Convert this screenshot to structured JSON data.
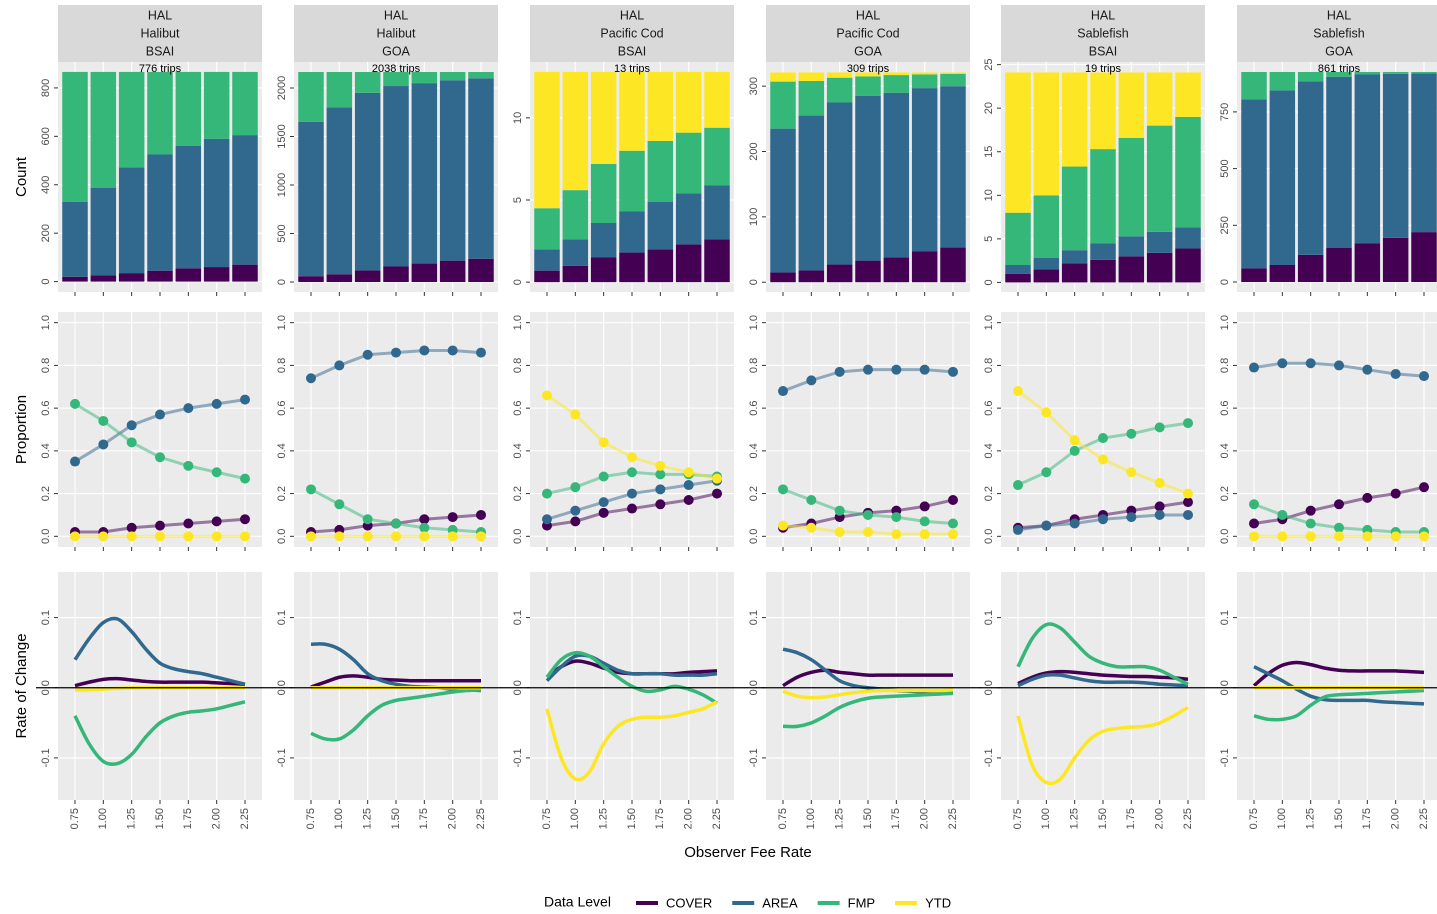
{
  "chart_data": {
    "type": "facet",
    "xlabel": "Observer Fee Rate",
    "legend_title": "Data Level",
    "levels": [
      {
        "name": "COVER",
        "color": "#440154"
      },
      {
        "name": "AREA",
        "color": "#31688e"
      },
      {
        "name": "FMP",
        "color": "#35b779"
      },
      {
        "name": "YTD",
        "color": "#fde725"
      }
    ],
    "xlim": [
      0.6,
      2.4
    ],
    "xticks": [
      0.75,
      {
        "value": 1,
        "label": "1.00"
      },
      1.25,
      {
        "value": 1.5,
        "label": "1.50"
      },
      1.75,
      {
        "value": 2,
        "label": "2.00"
      },
      2.25
    ],
    "x": [
      0.75,
      1,
      1.25,
      1.5,
      1.75,
      2,
      2.25
    ],
    "rate_x": [
      0.75,
      0.875,
      1,
      1.125,
      1.25,
      1.375,
      1.5,
      1.625,
      1.75,
      1.875,
      2,
      2.125,
      2.25
    ],
    "rows": [
      {
        "type": "bar",
        "ylabel": "Count"
      },
      {
        "type": "line",
        "ylabel": "Proportion",
        "ylim": [
          -0.05,
          1.05
        ],
        "yticks": [
          {
            "value": 0,
            "label": "0.0"
          },
          0.2,
          0.4,
          0.6,
          0.8,
          {
            "value": 1,
            "label": "1.0"
          }
        ]
      },
      {
        "type": "smooth",
        "ylabel": "Rate of Change",
        "ylim": [
          -0.16,
          0.165
        ],
        "yticks": [
          -0.1,
          {
            "value": 0,
            "label": "0.0"
          },
          0.1
        ]
      }
    ],
    "panels": [
      {
        "strip": [
          "HAL",
          "Halibut",
          "BSAI"
        ],
        "trips": "776 trips",
        "count": {
          "ylim": [
            -43,
            907
          ],
          "yticks": [
            0,
            200,
            400,
            600,
            800
          ],
          "series": [
            [
              20,
              25,
              35,
              45,
              55,
              60,
              70
            ],
            [
              310,
              363,
              437,
              480,
              505,
              530,
              535
            ],
            [
              536,
              478,
              394,
              341,
              306,
              276,
              261
            ],
            [
              0,
              0,
              0,
              0,
              0,
              0,
              0
            ]
          ]
        },
        "proportion": [
          [
            0.02,
            0.02,
            0.04,
            0.05,
            0.06,
            0.07,
            0.08
          ],
          [
            0.35,
            0.43,
            0.52,
            0.57,
            0.6,
            0.62,
            0.64
          ],
          [
            0.62,
            0.54,
            0.44,
            0.37,
            0.33,
            0.3,
            0.27
          ],
          [
            0,
            0,
            0,
            0,
            0,
            0,
            0
          ]
        ],
        "rate": [
          [
            0.003,
            0.008,
            0.012,
            0.013,
            0.011,
            0.009,
            0.008,
            0.008,
            0.008,
            0.008,
            0.007,
            0.006,
            0.005
          ],
          [
            0.04,
            0.07,
            0.093,
            0.098,
            0.08,
            0.055,
            0.035,
            0.027,
            0.023,
            0.02,
            0.015,
            0.01,
            0.005
          ],
          [
            -0.04,
            -0.08,
            -0.105,
            -0.108,
            -0.095,
            -0.07,
            -0.05,
            -0.04,
            -0.035,
            -0.033,
            -0.03,
            -0.025,
            -0.02
          ],
          [
            -0.003,
            -0.003,
            -0.002,
            -0.001,
            0,
            0,
            0,
            0,
            0,
            0,
            0,
            0,
            0
          ]
        ]
      },
      {
        "strip": [
          "HAL",
          "Halibut",
          "GOA"
        ],
        "trips": "2038 trips",
        "count": {
          "ylim": [
            -103,
            2268
          ],
          "yticks": [
            0,
            500,
            1000,
            1500,
            2000
          ],
          "series": [
            [
              60,
              80,
              120,
              160,
              190,
              220,
              240
            ],
            [
              1590,
              1720,
              1830,
              1860,
              1860,
              1860,
              1860
            ],
            [
              515,
              365,
              215,
              145,
              115,
              85,
              65
            ],
            [
              0,
              0,
              0,
              0,
              0,
              0,
              0
            ]
          ]
        },
        "proportion": [
          [
            0.02,
            0.03,
            0.05,
            0.06,
            0.08,
            0.09,
            0.1
          ],
          [
            0.74,
            0.8,
            0.85,
            0.86,
            0.87,
            0.87,
            0.86
          ],
          [
            0.22,
            0.15,
            0.08,
            0.06,
            0.04,
            0.03,
            0.02
          ],
          [
            0,
            0,
            0,
            0,
            0,
            0,
            0
          ]
        ],
        "rate": [
          [
            0.001,
            0.008,
            0.015,
            0.017,
            0.015,
            0.012,
            0.011,
            0.01,
            0.01,
            0.01,
            0.01,
            0.01,
            0.01
          ],
          [
            0.062,
            0.062,
            0.055,
            0.04,
            0.02,
            0.01,
            0.005,
            0.002,
            0.001,
            0,
            -0.002,
            -0.003,
            -0.004
          ],
          [
            -0.065,
            -0.073,
            -0.073,
            -0.06,
            -0.04,
            -0.025,
            -0.018,
            -0.015,
            -0.012,
            -0.009,
            -0.006,
            -0.004,
            -0.003
          ],
          [
            0,
            0,
            0,
            0,
            0,
            0,
            0,
            0,
            0,
            0,
            0,
            0,
            0
          ]
        ]
      },
      {
        "strip": [
          "HAL",
          "Pacific Cod",
          "BSAI"
        ],
        "trips": "13 trips",
        "count": {
          "ylim": [
            -0.6,
            13.4
          ],
          "yticks": [
            0,
            5,
            10
          ],
          "series": [
            [
              0.7,
              1,
              1.5,
              1.8,
              2,
              2.3,
              2.6
            ],
            [
              1.3,
              1.6,
              2.1,
              2.5,
              2.9,
              3.1,
              3.3
            ],
            [
              2.5,
              3,
              3.6,
              3.7,
              3.7,
              3.7,
              3.5
            ],
            [
              8.3,
              7.2,
              5.6,
              4.8,
              4.2,
              3.7,
              3.4
            ]
          ]
        },
        "proportion": [
          [
            0.05,
            0.07,
            0.11,
            0.13,
            0.15,
            0.17,
            0.2
          ],
          [
            0.08,
            0.12,
            0.16,
            0.2,
            0.22,
            0.24,
            0.26
          ],
          [
            0.2,
            0.23,
            0.28,
            0.3,
            0.29,
            0.29,
            0.28
          ],
          [
            0.66,
            0.57,
            0.44,
            0.37,
            0.33,
            0.3,
            0.27
          ]
        ],
        "rate": [
          [
            0.015,
            0.03,
            0.038,
            0.035,
            0.028,
            0.022,
            0.02,
            0.02,
            0.02,
            0.02,
            0.022,
            0.023,
            0.024
          ],
          [
            0.01,
            0.03,
            0.045,
            0.045,
            0.035,
            0.025,
            0.02,
            0.02,
            0.02,
            0.018,
            0.018,
            0.018,
            0.02
          ],
          [
            0.015,
            0.04,
            0.05,
            0.045,
            0.03,
            0.015,
            0.002,
            -0.005,
            -0.003,
            0.002,
            -0.002,
            -0.01,
            -0.022
          ],
          [
            -0.03,
            -0.1,
            -0.13,
            -0.12,
            -0.08,
            -0.055,
            -0.045,
            -0.042,
            -0.042,
            -0.04,
            -0.035,
            -0.03,
            -0.02
          ]
        ]
      },
      {
        "strip": [
          "HAL",
          "Pacific Cod",
          "GOA"
        ],
        "trips": "309 trips",
        "count": {
          "ylim": [
            -15,
            337
          ],
          "yticks": [
            0,
            100,
            200,
            300
          ],
          "series": [
            [
              15,
              18,
              27,
              33,
              38,
              47,
              53
            ],
            [
              220,
              237,
              248,
              252,
              252,
              250,
              247
            ],
            [
              72,
              53,
              38,
              30,
              27,
              21,
              19
            ],
            [
              14,
              13,
              8,
              6,
              4,
              3,
              2
            ]
          ]
        },
        "proportion": [
          [
            0.04,
            0.06,
            0.09,
            0.11,
            0.12,
            0.14,
            0.17
          ],
          [
            0.68,
            0.73,
            0.77,
            0.78,
            0.78,
            0.78,
            0.77
          ],
          [
            0.22,
            0.17,
            0.12,
            0.1,
            0.09,
            0.07,
            0.06
          ],
          [
            0.05,
            0.04,
            0.02,
            0.02,
            0.01,
            0.01,
            0.01
          ]
        ],
        "rate": [
          [
            0.003,
            0.015,
            0.022,
            0.025,
            0.022,
            0.02,
            0.018,
            0.018,
            0.018,
            0.018,
            0.018,
            0.018,
            0.018
          ],
          [
            0.055,
            0.05,
            0.04,
            0.025,
            0.01,
            0.003,
            0,
            -0.002,
            -0.004,
            -0.005,
            -0.006,
            -0.007,
            -0.007
          ],
          [
            -0.055,
            -0.055,
            -0.05,
            -0.04,
            -0.028,
            -0.02,
            -0.015,
            -0.013,
            -0.012,
            -0.011,
            -0.01,
            -0.009,
            -0.008
          ],
          [
            -0.005,
            -0.012,
            -0.014,
            -0.013,
            -0.01,
            -0.007,
            -0.005,
            -0.004,
            -0.004,
            -0.004,
            -0.004,
            -0.004,
            -0.003
          ]
        ]
      },
      {
        "strip": [
          "HAL",
          "Sablefish",
          "BSAI"
        ],
        "trips": "19 trips",
        "count": {
          "ylim": [
            -1.1,
            25.3
          ],
          "yticks": [
            0,
            5,
            10,
            15,
            20,
            25
          ],
          "series": [
            [
              1,
              1.5,
              2.2,
              2.6,
              3,
              3.4,
              3.9
            ],
            [
              1,
              1.3,
              1.5,
              1.9,
              2.3,
              2.4,
              2.4
            ],
            [
              6,
              7.2,
              9.6,
              10.8,
              11.3,
              12.2,
              12.7
            ],
            [
              16.1,
              14.1,
              10.8,
              8.8,
              7.5,
              6.1,
              5.1
            ]
          ]
        },
        "proportion": [
          [
            0.04,
            0.05,
            0.08,
            0.1,
            0.12,
            0.14,
            0.16
          ],
          [
            0.03,
            0.05,
            0.06,
            0.08,
            0.09,
            0.1,
            0.1
          ],
          [
            0.24,
            0.3,
            0.4,
            0.46,
            0.48,
            0.51,
            0.53
          ],
          [
            0.68,
            0.58,
            0.45,
            0.36,
            0.3,
            0.25,
            0.2
          ]
        ],
        "rate": [
          [
            0.006,
            0.015,
            0.021,
            0.023,
            0.022,
            0.02,
            0.018,
            0.017,
            0.016,
            0.016,
            0.015,
            0.014,
            0.012
          ],
          [
            0.003,
            0.012,
            0.018,
            0.018,
            0.014,
            0.01,
            0.008,
            0.008,
            0.008,
            0.007,
            0.005,
            0.004,
            0.003
          ],
          [
            0.03,
            0.07,
            0.09,
            0.085,
            0.065,
            0.045,
            0.035,
            0.03,
            0.03,
            0.03,
            0.025,
            0.015,
            0.005
          ],
          [
            -0.04,
            -0.11,
            -0.135,
            -0.13,
            -0.1,
            -0.075,
            -0.062,
            -0.058,
            -0.056,
            -0.055,
            -0.05,
            -0.04,
            -0.028
          ]
        ]
      },
      {
        "strip": [
          "HAL",
          "Sablefish",
          "GOA"
        ],
        "trips": "861 trips",
        "count": {
          "ylim": [
            -44,
            970
          ],
          "yticks": [
            0,
            250,
            500,
            750
          ],
          "series": [
            [
              60,
              75,
              120,
              150,
              170,
              195,
              220
            ],
            [
              745,
              770,
              765,
              755,
              745,
              723,
              700
            ],
            [
              121,
              81,
              41,
              21,
              11,
              8,
              6
            ],
            [
              0,
              0,
              0,
              0,
              0,
              0,
              0
            ]
          ]
        },
        "proportion": [
          [
            0.06,
            0.08,
            0.12,
            0.15,
            0.18,
            0.2,
            0.23
          ],
          [
            0.79,
            0.81,
            0.81,
            0.8,
            0.78,
            0.76,
            0.75
          ],
          [
            0.15,
            0.1,
            0.06,
            0.04,
            0.03,
            0.02,
            0.02
          ],
          [
            0,
            0,
            0,
            0,
            0,
            0,
            0
          ]
        ],
        "rate": [
          [
            0.003,
            0.02,
            0.032,
            0.036,
            0.033,
            0.028,
            0.025,
            0.024,
            0.024,
            0.024,
            0.024,
            0.023,
            0.022
          ],
          [
            0.03,
            0.02,
            0.01,
            -0.002,
            -0.012,
            -0.017,
            -0.018,
            -0.018,
            -0.018,
            -0.02,
            -0.021,
            -0.022,
            -0.023
          ],
          [
            -0.04,
            -0.045,
            -0.045,
            -0.04,
            -0.025,
            -0.013,
            -0.01,
            -0.009,
            -0.008,
            -0.007,
            -0.006,
            -0.005,
            -0.004
          ],
          [
            0,
            0,
            0,
            0,
            0,
            0,
            0,
            0,
            0,
            0,
            0,
            0,
            0
          ]
        ]
      }
    ]
  }
}
